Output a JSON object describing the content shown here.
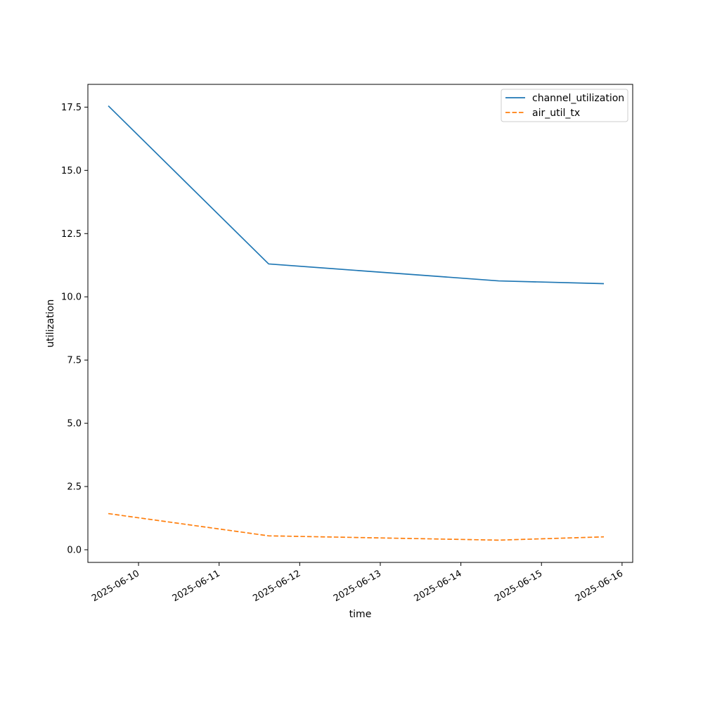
{
  "chart_data": {
    "type": "line",
    "title": "",
    "xlabel": "time",
    "ylabel": "utilization",
    "xlim": [
      "2025-06-09T08:55:00",
      "2025-06-16T03:10:00"
    ],
    "ylim": [
      -0.5,
      18.4
    ],
    "x_ticks": [
      "2025-06-10",
      "2025-06-11",
      "2025-06-12",
      "2025-06-13",
      "2025-06-14",
      "2025-06-15",
      "2025-06-16"
    ],
    "y_ticks": [
      "0.0",
      "2.5",
      "5.0",
      "7.5",
      "10.0",
      "12.5",
      "15.0",
      "17.5"
    ],
    "grid": false,
    "legend_position": "top-right",
    "series": [
      {
        "name": "channel_utilization",
        "style": "solid",
        "color": "#1f77b4",
        "points": [
          {
            "x": "2025-06-09T15:00:00",
            "y": 17.55
          },
          {
            "x": "2025-06-11T14:45:00",
            "y": 11.3
          },
          {
            "x": "2025-06-14T11:15:00",
            "y": 10.63
          },
          {
            "x": "2025-06-15T18:35:00",
            "y": 10.52
          }
        ]
      },
      {
        "name": "air_util_tx",
        "style": "dashed",
        "color": "#ff7f0e",
        "points": [
          {
            "x": "2025-06-09T15:00:00",
            "y": 1.43
          },
          {
            "x": "2025-06-11T14:45:00",
            "y": 0.55
          },
          {
            "x": "2025-06-14T11:15:00",
            "y": 0.38
          },
          {
            "x": "2025-06-15T18:35:00",
            "y": 0.51
          }
        ]
      }
    ]
  }
}
